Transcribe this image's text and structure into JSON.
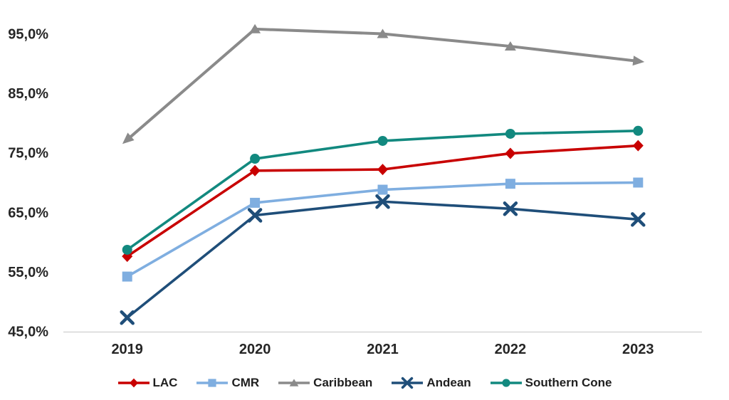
{
  "chart_data": {
    "type": "line",
    "title": "",
    "xlabel": "",
    "ylabel": "",
    "x_categories": [
      "2019",
      "2020",
      "2021",
      "2022",
      "2023"
    ],
    "yticks": [
      45,
      55,
      65,
      75,
      85,
      95
    ],
    "ytick_labels": [
      "45,0%",
      "55,0%",
      "65,0%",
      "75,0%",
      "85,0%",
      "95,0%"
    ],
    "ylim": [
      45,
      97.5
    ],
    "grid": false,
    "legend_position": "bottom",
    "series": [
      {
        "name": "LAC",
        "color": "#C80000",
        "marker": "diamond",
        "values": [
          57.6,
          72.0,
          72.2,
          74.9,
          76.2
        ]
      },
      {
        "name": "CMR",
        "color": "#7FAEE0",
        "marker": "square",
        "values": [
          54.2,
          66.6,
          68.8,
          69.8,
          70.0
        ]
      },
      {
        "name": "Caribbean",
        "color": "#8A8A8A",
        "marker": "triangle",
        "line_ends": "arrows",
        "values": [
          77.2,
          95.8,
          95.0,
          92.9,
          90.4
        ]
      },
      {
        "name": "Andean",
        "color": "#1F4E79",
        "marker": "x",
        "values": [
          47.3,
          64.5,
          66.8,
          65.6,
          63.8
        ]
      },
      {
        "name": "Southern Cone",
        "color": "#12897F",
        "marker": "circle",
        "values": [
          58.7,
          74.0,
          77.0,
          78.2,
          78.7
        ]
      }
    ]
  },
  "style": {
    "axis_line_color": "#D6D6D6",
    "label_color": "#262626"
  }
}
